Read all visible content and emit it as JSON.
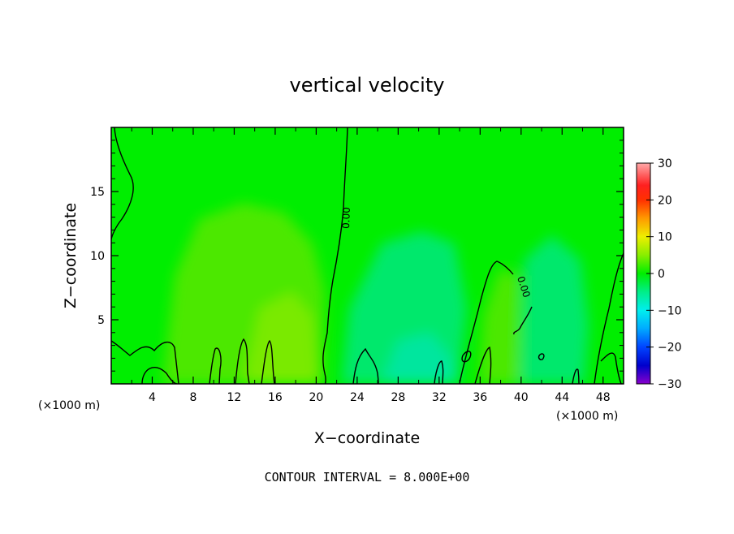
{
  "chart_data": {
    "type": "heatmap",
    "title": "vertical velocity",
    "xlabel": "X−coordinate",
    "ylabel": "Z−coordinate",
    "x_unit_left": "(×1000 m)",
    "x_unit_right": "(×1000 m)",
    "xlim": [
      0,
      50
    ],
    "ylim": [
      0,
      20
    ],
    "x_ticks": [
      4,
      8,
      12,
      16,
      20,
      24,
      28,
      32,
      36,
      40,
      44,
      48
    ],
    "y_ticks": [
      5,
      10,
      15
    ],
    "contour_label": "0.00",
    "contour_interval_text": "CONTOUR INTERVAL = 8.000E+00",
    "colorbar": {
      "min": -30,
      "max": 30,
      "ticks": [
        30,
        20,
        10,
        0,
        -10,
        -20,
        -30
      ],
      "tick_labels": [
        "30",
        "20",
        "10",
        "0",
        "−10",
        "−20",
        "−30"
      ],
      "stops": [
        {
          "value": 30,
          "color": "#ffaaaa"
        },
        {
          "value": 24,
          "color": "#ff2020"
        },
        {
          "value": 20,
          "color": "#ff3000"
        },
        {
          "value": 15,
          "color": "#ff9900"
        },
        {
          "value": 10,
          "color": "#eeee00"
        },
        {
          "value": 5,
          "color": "#88ee00"
        },
        {
          "value": 0,
          "color": "#00ee00"
        },
        {
          "value": -5,
          "color": "#00ee88"
        },
        {
          "value": -10,
          "color": "#00eeee"
        },
        {
          "value": -15,
          "color": "#00aaff"
        },
        {
          "value": -20,
          "color": "#0044ff"
        },
        {
          "value": -25,
          "color": "#0000cc"
        },
        {
          "value": -30,
          "color": "#8800cc"
        }
      ]
    },
    "field_background": "#00ee00",
    "contour_color": "#000000"
  }
}
